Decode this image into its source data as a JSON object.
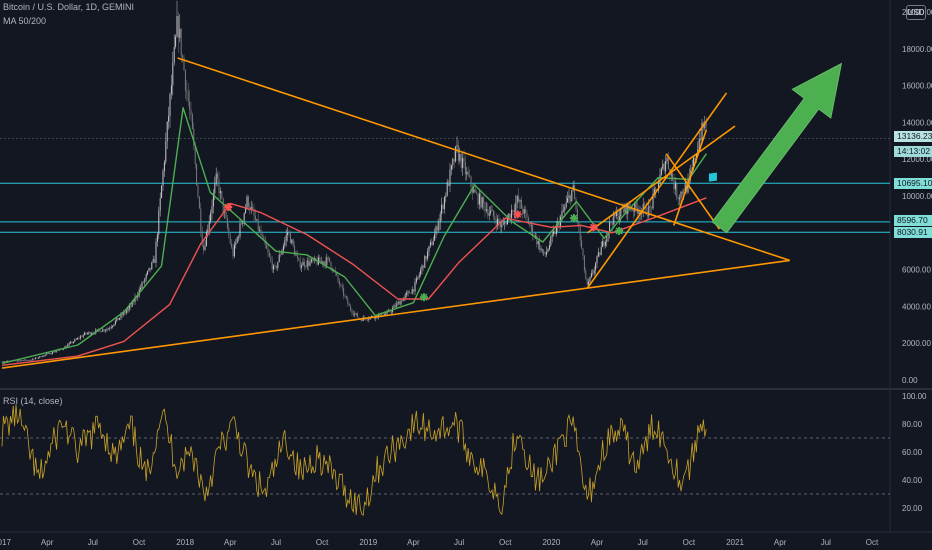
{
  "chart_data": [
    {
      "type": "candlestick",
      "title": "Bitcoin / U.S. Dollar, 1D, GEMINI",
      "indicator": "MA 50/200",
      "currency_button": "USD",
      "y_axis": {
        "ticks": [
          "0.00",
          "2000.00",
          "4000.00",
          "6000.00",
          "8000.00",
          "10000.00",
          "12000.00",
          "14000.00",
          "16000.00",
          "18000.00",
          "20000.00"
        ],
        "ylim": [
          0,
          20000
        ]
      },
      "x_axis": {
        "ticks": [
          "2017",
          "Apr",
          "Jul",
          "Oct",
          "2018",
          "Apr",
          "Jul",
          "Oct",
          "2019",
          "Apr",
          "Jul",
          "Oct",
          "2020",
          "Apr",
          "Jul",
          "Oct",
          "2021",
          "Apr",
          "Jul",
          "Oct"
        ]
      },
      "price_labels": [
        "13136.23",
        "14:13:02",
        "10695.10",
        "8596.70",
        "8030.91"
      ],
      "horizontal_lines": [
        13136.23,
        10695.1,
        8596.7,
        8030.91
      ],
      "series": [
        {
          "name": "Price",
          "x": [
            "2017-01-01",
            "2017-03-01",
            "2017-05-01",
            "2017-06-15",
            "2017-08-01",
            "2017-09-15",
            "2017-11-01",
            "2017-12-17",
            "2018-01-15",
            "2018-02-06",
            "2018-03-05",
            "2018-04-06",
            "2018-05-05",
            "2018-06-28",
            "2018-07-25",
            "2018-08-15",
            "2018-10-15",
            "2018-11-25",
            "2018-12-15",
            "2019-02-08",
            "2019-04-02",
            "2019-05-15",
            "2019-06-26",
            "2019-08-01",
            "2019-09-25",
            "2019-10-26",
            "2019-12-18",
            "2020-02-13",
            "2020-03-12",
            "2020-04-30",
            "2020-06-01",
            "2020-07-15",
            "2020-08-17",
            "2020-09-08",
            "2020-10-01",
            "2020-10-21",
            "2020-11-05"
          ],
          "values": [
            1000,
            1100,
            1700,
            2500,
            2800,
            4000,
            6500,
            19500,
            13500,
            7000,
            11000,
            6800,
            9800,
            5900,
            8100,
            6300,
            6500,
            3900,
            3300,
            3600,
            5000,
            8000,
            12500,
            10100,
            8300,
            9800,
            6700,
            10400,
            5000,
            8700,
            9400,
            9200,
            12100,
            10000,
            10600,
            13100,
            14100
          ]
        },
        {
          "name": "MA 50",
          "x": [
            "2017-01-01",
            "2017-06-01",
            "2017-09-01",
            "2017-11-15",
            "2017-12-28",
            "2018-02-20",
            "2018-05-01",
            "2018-07-01",
            "2018-09-01",
            "2018-11-15",
            "2019-01-15",
            "2019-04-01",
            "2019-06-01",
            "2019-08-01",
            "2019-10-15",
            "2019-12-15",
            "2020-02-20",
            "2020-04-15",
            "2020-06-01",
            "2020-08-01",
            "2020-10-01",
            "2020-11-05"
          ],
          "values": [
            900,
            1900,
            3700,
            6200,
            14800,
            10200,
            8500,
            7000,
            6800,
            5600,
            3500,
            4200,
            7800,
            10600,
            8600,
            7500,
            9700,
            7700,
            9200,
            11000,
            10900,
            12300
          ]
        },
        {
          "name": "MA 200",
          "x": [
            "2017-01-01",
            "2017-06-01",
            "2017-09-01",
            "2017-12-01",
            "2018-02-01",
            "2018-04-01",
            "2018-06-01",
            "2018-09-01",
            "2018-12-01",
            "2019-03-01",
            "2019-05-01",
            "2019-07-01",
            "2019-10-01",
            "2020-01-01",
            "2020-03-01",
            "2020-05-01",
            "2020-08-01",
            "2020-11-05"
          ],
          "values": [
            800,
            1300,
            2100,
            4100,
            7400,
            9600,
            9100,
            7900,
            6300,
            4400,
            4400,
            6400,
            8800,
            8300,
            8400,
            8000,
            8900,
            9900
          ]
        }
      ],
      "markers": [
        {
          "date": "2018-03-28",
          "value": 9400,
          "color": "#ff5252"
        },
        {
          "date": "2019-04-22",
          "value": 4500,
          "color": "#4caf50"
        },
        {
          "date": "2019-10-26",
          "value": 9000,
          "color": "#ff5252"
        },
        {
          "date": "2020-02-15",
          "value": 8800,
          "color": "#4caf50"
        },
        {
          "date": "2020-03-25",
          "value": 8300,
          "color": "#ff5252"
        },
        {
          "date": "2020-05-15",
          "value": 8100,
          "color": "#4caf50"
        }
      ],
      "trendlines": [
        {
          "from": [
            "2017-01-01",
            650
          ],
          "to": [
            "2021-04-20",
            6500
          ]
        },
        {
          "from": [
            "2017-12-17",
            17500
          ],
          "to": [
            "2021-04-20",
            6500
          ]
        },
        {
          "from": [
            "2020-03-13",
            5000
          ],
          "to": [
            "2020-12-15",
            15600
          ]
        },
        {
          "from": [
            "2020-03-13",
            8000
          ],
          "to": [
            "2021-01-01",
            13800
          ]
        },
        {
          "from": [
            "2020-08-17",
            12300
          ],
          "to": [
            "2020-12-01",
            8200
          ]
        },
        {
          "from": [
            "2020-09-01",
            8400
          ],
          "to": [
            "2020-11-05",
            13600
          ]
        }
      ],
      "arrow": {
        "from": [
          "2020-12-01",
          8300
        ],
        "to": [
          "2021-08-01",
          17200
        ],
        "color": "#4caf50"
      },
      "flag_marker": {
        "date": "2020-11-10",
        "value": 11000,
        "color": "#26c6da"
      },
      "colors": {
        "background": "#131722",
        "price": "#b8b8b8",
        "ma50": "#4caf50",
        "ma200": "#ef5350",
        "trend": "#ff9800",
        "hline": "#26c6da"
      }
    },
    {
      "type": "line",
      "title": "RSI (14, close)",
      "y_axis": {
        "ticks": [
          "20.00",
          "40.00",
          "60.00",
          "80.00",
          "100.00"
        ],
        "ylim": [
          10,
          100
        ]
      },
      "levels": [
        70,
        30
      ],
      "series": [
        {
          "name": "RSI (14, close)",
          "x": [
            "2017-01-01",
            "2017-02-01",
            "2017-03-15",
            "2017-05-01",
            "2017-06-01",
            "2017-07-15",
            "2017-08-15",
            "2017-09-15",
            "2017-10-15",
            "2017-11-15",
            "2017-12-15",
            "2018-01-15",
            "2018-02-10",
            "2018-03-10",
            "2018-04-10",
            "2018-05-10",
            "2018-06-10",
            "2018-07-20",
            "2018-08-20",
            "2018-09-20",
            "2018-10-20",
            "2018-11-20",
            "2018-12-20",
            "2019-01-20",
            "2019-02-20",
            "2019-04-05",
            "2019-05-15",
            "2019-06-25",
            "2019-07-20",
            "2019-08-20",
            "2019-09-25",
            "2019-10-26",
            "2019-11-25",
            "2019-12-20",
            "2020-01-20",
            "2020-02-13",
            "2020-03-12",
            "2020-04-20",
            "2020-05-20",
            "2020-06-20",
            "2020-07-25",
            "2020-08-20",
            "2020-09-15",
            "2020-10-05",
            "2020-10-25",
            "2020-11-05"
          ],
          "values": [
            75,
            88,
            40,
            82,
            60,
            80,
            55,
            78,
            40,
            90,
            50,
            60,
            30,
            62,
            80,
            45,
            30,
            70,
            44,
            58,
            45,
            30,
            20,
            48,
            62,
            80,
            75,
            81,
            60,
            45,
            25,
            80,
            42,
            40,
            70,
            78,
            25,
            68,
            75,
            48,
            82,
            62,
            40,
            52,
            80,
            81
          ]
        }
      ],
      "colors": {
        "rsi": "#c9a227",
        "levels": "#787b86"
      }
    }
  ]
}
